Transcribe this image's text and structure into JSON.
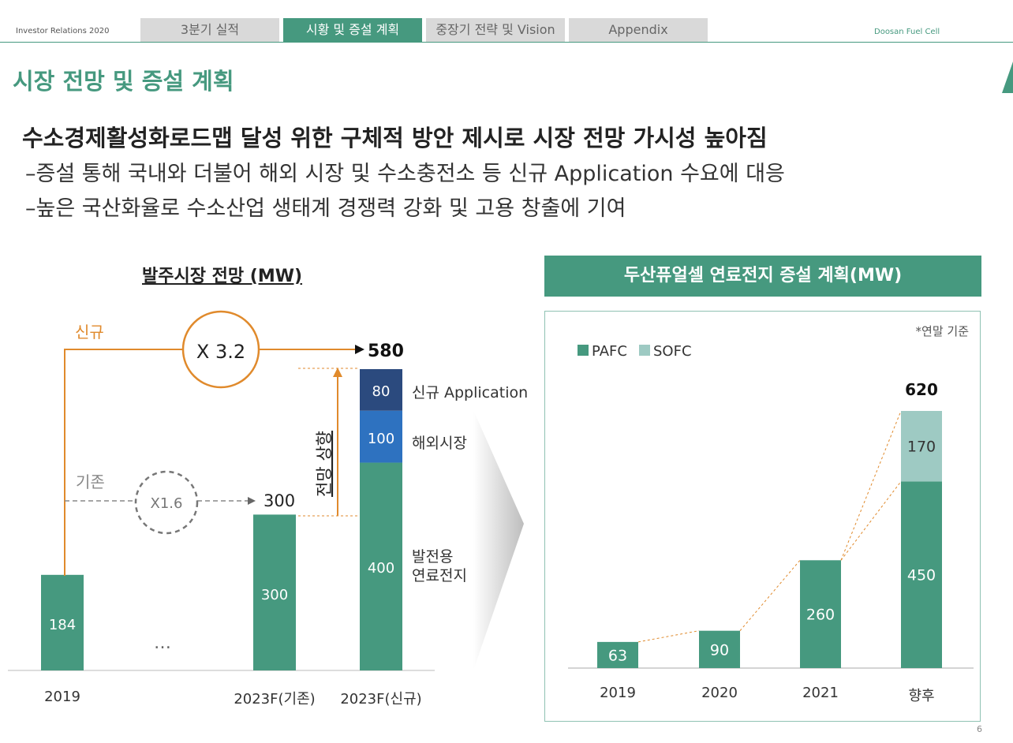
{
  "header": {
    "left_label": "Investor Relations 2020",
    "tabs": [
      {
        "label": "3분기 실적"
      },
      {
        "label": "시황 및 증설 계획"
      },
      {
        "label": "중장기 전략 및 Vision"
      },
      {
        "label": "Appendix"
      }
    ],
    "right_label": "Doosan Fuel Cell"
  },
  "page_title": "시장 전망 및 증설 계획",
  "headline": "수소경제활성화로드맵 달성 위한 구체적 방안 제시로 시장 전망 가시성 높아짐",
  "bullets": [
    "–증설 통해 국내와 더불어 해외 시장 및 수소충전소 등 신규 Application 수요에 대응",
    "–높은 국산화율로 수소산업 생태계 경쟁력 강화 및 고용 창출에 기여"
  ],
  "page_number": "6",
  "colors": {
    "green": "#46997f",
    "blue": "#2e72c0",
    "navy": "#2b4a7e",
    "light_teal": "#9ecac3",
    "orange": "#e08a2c",
    "gray": "#888888"
  },
  "chart_data": [
    {
      "type": "bar",
      "title": "발주시장 전망 (MW)",
      "categories": [
        "2019",
        "2023F(기존)",
        "2023F(신규)"
      ],
      "series": [
        {
          "name": "발전용 연료전지",
          "values": [
            184,
            300,
            400
          ]
        },
        {
          "name": "해외시장",
          "values": [
            0,
            0,
            100
          ]
        },
        {
          "name": "신규 Application",
          "values": [
            0,
            0,
            80
          ]
        }
      ],
      "totals": [
        184,
        300,
        580
      ],
      "ellipsis": "…",
      "annotations": {
        "new_label": "신규",
        "new_multiplier": "X 3.2",
        "existing_label": "기존",
        "existing_multiplier": "X1.6",
        "upward_label": "전망 상향",
        "segment_labels": [
          "신규 Application",
          "해외시장",
          "발전용\n연료전지"
        ]
      },
      "total_labels": [
        "300",
        "580"
      ],
      "segment_value_labels": [
        "184",
        "300",
        "400",
        "100",
        "80"
      ]
    },
    {
      "type": "bar",
      "stacked": true,
      "title": "두산퓨얼셀 연료전지 증설 계획(MW)",
      "note": "*연말 기준",
      "categories": [
        "2019",
        "2020",
        "2021",
        "향후"
      ],
      "series": [
        {
          "name": "PAFC",
          "values": [
            63,
            90,
            260,
            450
          ]
        },
        {
          "name": "SOFC",
          "values": [
            0,
            0,
            0,
            170
          ]
        }
      ],
      "total_label": "620",
      "legend": [
        "PAFC",
        "SOFC"
      ]
    }
  ]
}
